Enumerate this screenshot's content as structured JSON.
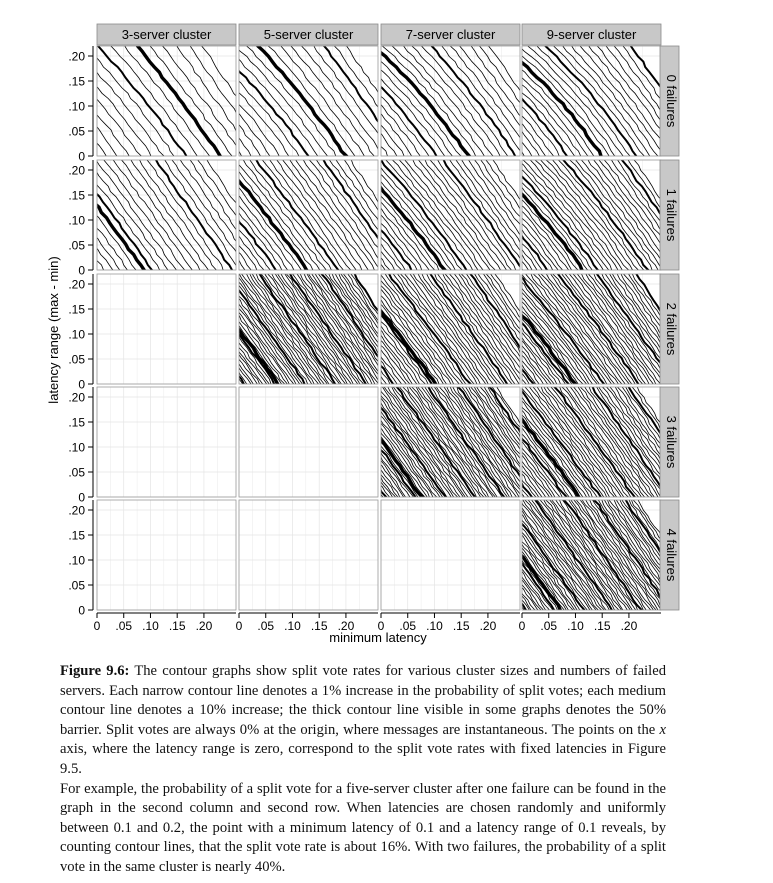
{
  "chart_data": {
    "type": "contour",
    "facet_columns": [
      "3-server cluster",
      "5-server cluster",
      "7-server cluster",
      "9-server cluster"
    ],
    "facet_rows": [
      "0 failures",
      "1 failures",
      "2 failures",
      "3 failures",
      "4 failures"
    ],
    "xlabel": "minimum latency",
    "ylabel": "latency range (max - min)",
    "x_ticks": [
      "0",
      ".05",
      ".10",
      ".15",
      ".20"
    ],
    "y_ticks": [
      "0",
      ".05",
      ".10",
      ".15",
      ".20"
    ],
    "x_tick_values": [
      0,
      0.05,
      0.1,
      0.15,
      0.2
    ],
    "y_tick_values": [
      0,
      0.05,
      0.1,
      0.15,
      0.2
    ],
    "xlim": [
      0,
      0.26
    ],
    "ylim": [
      0,
      0.22
    ],
    "contour_step_percent": 1,
    "medium_step_percent": 10,
    "thick_contour_percent": 50,
    "panels": [
      {
        "col": 0,
        "row": 0,
        "present": true,
        "lines": 18,
        "thick_at": 0.72,
        "curve": 0.9
      },
      {
        "col": 1,
        "row": 0,
        "present": true,
        "lines": 22,
        "thick_at": 0.62,
        "curve": 1.1
      },
      {
        "col": 2,
        "row": 0,
        "present": true,
        "lines": 26,
        "thick_at": 0.55,
        "curve": 1.3
      },
      {
        "col": 3,
        "row": 0,
        "present": true,
        "lines": 30,
        "thick_at": 0.5,
        "curve": 1.5
      },
      {
        "col": 0,
        "row": 1,
        "present": true,
        "lines": 26,
        "thick_at": 0.35,
        "curve": 0.4
      },
      {
        "col": 1,
        "row": 1,
        "present": true,
        "lines": 34,
        "thick_at": 0.45,
        "curve": 0.6
      },
      {
        "col": 2,
        "row": 1,
        "present": true,
        "lines": 38,
        "thick_at": 0.42,
        "curve": 0.8
      },
      {
        "col": 3,
        "row": 1,
        "present": true,
        "lines": 42,
        "thick_at": 0.4,
        "curve": 1.0
      },
      {
        "col": 0,
        "row": 2,
        "present": false
      },
      {
        "col": 1,
        "row": 2,
        "present": true,
        "lines": 70,
        "thick_at": 0.3,
        "curve": 0.3
      },
      {
        "col": 2,
        "row": 2,
        "present": true,
        "lines": 56,
        "thick_at": 0.38,
        "curve": 0.5
      },
      {
        "col": 3,
        "row": 2,
        "present": true,
        "lines": 60,
        "thick_at": 0.36,
        "curve": 0.7
      },
      {
        "col": 0,
        "row": 3,
        "present": false
      },
      {
        "col": 1,
        "row": 3,
        "present": false
      },
      {
        "col": 2,
        "row": 3,
        "present": true,
        "lines": 72,
        "thick_at": 0.3,
        "curve": 0.3
      },
      {
        "col": 3,
        "row": 3,
        "present": true,
        "lines": 62,
        "thick_at": 0.38,
        "curve": 0.5
      },
      {
        "col": 0,
        "row": 4,
        "present": false
      },
      {
        "col": 1,
        "row": 4,
        "present": false
      },
      {
        "col": 2,
        "row": 4,
        "present": false
      },
      {
        "col": 3,
        "row": 4,
        "present": true,
        "lines": 74,
        "thick_at": 0.3,
        "curve": 0.3
      }
    ]
  },
  "colors": {
    "strip_bg": "#c8c8c8",
    "grid": "#e4e4e4",
    "contour": "#000000",
    "panel_bg": "#ffffff"
  },
  "caption": {
    "label": "Figure 9.6:",
    "p1_before_x": "The contour graphs show split vote rates for various cluster sizes and numbers of failed servers. Each narrow contour line denotes a 1% increase in the probability of split votes; each medium contour line denotes a 10% increase; the thick contour line visible in some graphs denotes the 50% barrier. Split votes are always 0% at the origin, where messages are instantaneous. The points on the",
    "x_symbol": "x",
    "p1_after_x": "axis, where the latency range is zero, correspond to the split vote rates with fixed latencies in Figure 9.5.",
    "p2": "For example, the probability of a split vote for a five-server cluster after one failure can be found in the graph in the second column and second row. When latencies are chosen randomly and uniformly between 0.1 and 0.2, the point with a minimum latency of 0.1 and a latency range of 0.1 reveals, by counting contour lines, that the split vote rate is about 16%. With two failures, the probability of a split vote in the same cluster is nearly 40%."
  }
}
